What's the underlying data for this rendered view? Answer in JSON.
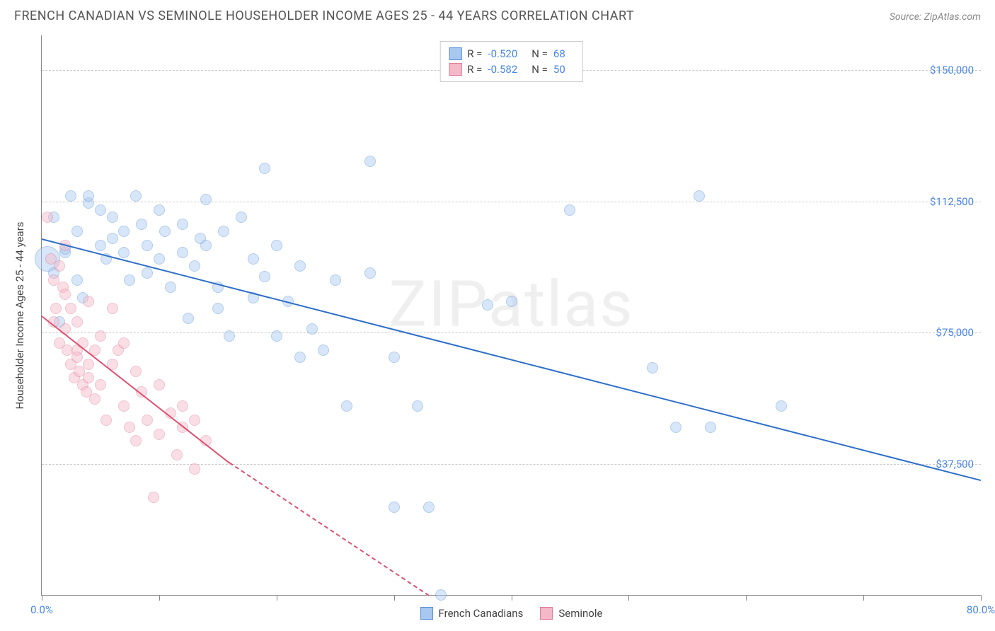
{
  "header": {
    "title": "FRENCH CANADIAN VS SEMINOLE HOUSEHOLDER INCOME AGES 25 - 44 YEARS CORRELATION CHART",
    "source_label": "Source:",
    "source_value": "ZipAtlas.com"
  },
  "watermark": "ZIPatlas",
  "chart": {
    "type": "scatter",
    "y_axis_title": "Householder Income Ages 25 - 44 years",
    "background_color": "#ffffff",
    "grid_color": "#cccccc",
    "axis_color": "#888888",
    "xlim": [
      0,
      80
    ],
    "ylim": [
      0,
      160000
    ],
    "x_ticks": [
      0,
      10,
      20,
      30,
      40,
      50,
      60,
      70,
      80
    ],
    "x_labels_shown": {
      "0": "0.0%",
      "80": "80.0%"
    },
    "y_gridlines": [
      37500,
      75000,
      112500,
      150000
    ],
    "y_labels": {
      "37500": "$37,500",
      "75000": "$75,000",
      "112500": "$112,500",
      "150000": "$150,000"
    },
    "label_color": "#4a86e8",
    "label_fontsize": 15,
    "point_radius": 8,
    "point_opacity": 0.45,
    "series": [
      {
        "name": "French Canadians",
        "fill_color": "#a8c8f0",
        "stroke_color": "#5b8fd6",
        "trend_color": "#2e6fc9",
        "R": "-0.520",
        "N": "68",
        "trendline": {
          "x1": 0,
          "y1": 102000,
          "x2": 80,
          "y2": 33000
        },
        "points": [
          [
            0.5,
            96000,
            18
          ],
          [
            1,
            108000,
            8
          ],
          [
            1,
            92000,
            8
          ],
          [
            1.5,
            78000,
            8
          ],
          [
            2,
            98000,
            8
          ],
          [
            2,
            99000,
            8
          ],
          [
            2.5,
            114000,
            8
          ],
          [
            3,
            104000,
            8
          ],
          [
            3,
            90000,
            8
          ],
          [
            3.5,
            85000,
            8
          ],
          [
            4,
            112000,
            8
          ],
          [
            4,
            114000,
            8
          ],
          [
            5,
            100000,
            8
          ],
          [
            5,
            110000,
            8
          ],
          [
            5.5,
            96000,
            8
          ],
          [
            6,
            102000,
            8
          ],
          [
            6,
            108000,
            8
          ],
          [
            7,
            98000,
            8
          ],
          [
            7,
            104000,
            8
          ],
          [
            7.5,
            90000,
            8
          ],
          [
            8,
            114000,
            8
          ],
          [
            8.5,
            106000,
            8
          ],
          [
            9,
            100000,
            8
          ],
          [
            9,
            92000,
            8
          ],
          [
            10,
            96000,
            8
          ],
          [
            10,
            110000,
            8
          ],
          [
            10.5,
            104000,
            8
          ],
          [
            11,
            88000,
            8
          ],
          [
            12,
            106000,
            8
          ],
          [
            12,
            98000,
            8
          ],
          [
            12.5,
            79000,
            8
          ],
          [
            13,
            94000,
            8
          ],
          [
            13.5,
            102000,
            8
          ],
          [
            14,
            100000,
            8
          ],
          [
            14,
            113000,
            8
          ],
          [
            15,
            82000,
            8
          ],
          [
            15,
            88000,
            8
          ],
          [
            15.5,
            104000,
            8
          ],
          [
            16,
            74000,
            8
          ],
          [
            17,
            108000,
            8
          ],
          [
            18,
            96000,
            8
          ],
          [
            18,
            85000,
            8
          ],
          [
            19,
            122000,
            8
          ],
          [
            19,
            91000,
            8
          ],
          [
            20,
            100000,
            8
          ],
          [
            20,
            74000,
            8
          ],
          [
            21,
            84000,
            8
          ],
          [
            22,
            68000,
            8
          ],
          [
            22,
            94000,
            8
          ],
          [
            23,
            76000,
            8
          ],
          [
            24,
            70000,
            8
          ],
          [
            25,
            90000,
            8
          ],
          [
            26,
            54000,
            8
          ],
          [
            28,
            124000,
            8
          ],
          [
            28,
            92000,
            8
          ],
          [
            30,
            68000,
            8
          ],
          [
            30,
            25000,
            8
          ],
          [
            32,
            54000,
            8
          ],
          [
            33,
            25000,
            8
          ],
          [
            34,
            0,
            8
          ],
          [
            38,
            83000,
            8
          ],
          [
            40,
            84000,
            8
          ],
          [
            45,
            110000,
            8
          ],
          [
            52,
            65000,
            8
          ],
          [
            54,
            48000,
            8
          ],
          [
            56,
            114000,
            8
          ],
          [
            57,
            48000,
            8
          ],
          [
            63,
            54000,
            8
          ]
        ]
      },
      {
        "name": "Seminole",
        "fill_color": "#f5b8c8",
        "stroke_color": "#e07895",
        "trend_color": "#e0506f",
        "R": "-0.582",
        "N": "50",
        "trendline_solid": {
          "x1": 0,
          "y1": 80000,
          "x2": 16,
          "y2": 38000
        },
        "trendline_dashed": {
          "x1": 16,
          "y1": 38000,
          "x2": 33,
          "y2": 0
        },
        "points": [
          [
            0.5,
            108000,
            8
          ],
          [
            0.8,
            96000,
            8
          ],
          [
            1,
            90000,
            8
          ],
          [
            1,
            78000,
            8
          ],
          [
            1.2,
            82000,
            8
          ],
          [
            1.5,
            94000,
            8
          ],
          [
            1.5,
            72000,
            8
          ],
          [
            1.8,
            88000,
            8
          ],
          [
            2,
            100000,
            8
          ],
          [
            2,
            86000,
            8
          ],
          [
            2,
            76000,
            8
          ],
          [
            2.2,
            70000,
            8
          ],
          [
            2.5,
            82000,
            8
          ],
          [
            2.5,
            66000,
            8
          ],
          [
            2.8,
            62000,
            8
          ],
          [
            3,
            78000,
            8
          ],
          [
            3,
            70000,
            8
          ],
          [
            3,
            68000,
            8
          ],
          [
            3.2,
            64000,
            8
          ],
          [
            3.5,
            72000,
            8
          ],
          [
            3.5,
            60000,
            8
          ],
          [
            3.8,
            58000,
            8
          ],
          [
            4,
            84000,
            8
          ],
          [
            4,
            66000,
            8
          ],
          [
            4,
            62000,
            8
          ],
          [
            4.5,
            56000,
            8
          ],
          [
            4.5,
            70000,
            8
          ],
          [
            5,
            74000,
            8
          ],
          [
            5,
            60000,
            8
          ],
          [
            5.5,
            50000,
            8
          ],
          [
            6,
            82000,
            8
          ],
          [
            6,
            66000,
            8
          ],
          [
            6.5,
            70000,
            8
          ],
          [
            7,
            54000,
            8
          ],
          [
            7,
            72000,
            8
          ],
          [
            7.5,
            48000,
            8
          ],
          [
            8,
            64000,
            8
          ],
          [
            8,
            44000,
            8
          ],
          [
            8.5,
            58000,
            8
          ],
          [
            9,
            50000,
            8
          ],
          [
            9.5,
            28000,
            8
          ],
          [
            10,
            60000,
            8
          ],
          [
            10,
            46000,
            8
          ],
          [
            11,
            52000,
            8
          ],
          [
            11.5,
            40000,
            8
          ],
          [
            12,
            48000,
            8
          ],
          [
            12,
            54000,
            8
          ],
          [
            13,
            36000,
            8
          ],
          [
            13,
            50000,
            8
          ],
          [
            14,
            44000,
            8
          ]
        ]
      }
    ]
  },
  "legend_top": {
    "R_label": "R =",
    "N_label": "N ="
  },
  "legend_bottom": {
    "items": [
      "French Canadians",
      "Seminole"
    ]
  }
}
